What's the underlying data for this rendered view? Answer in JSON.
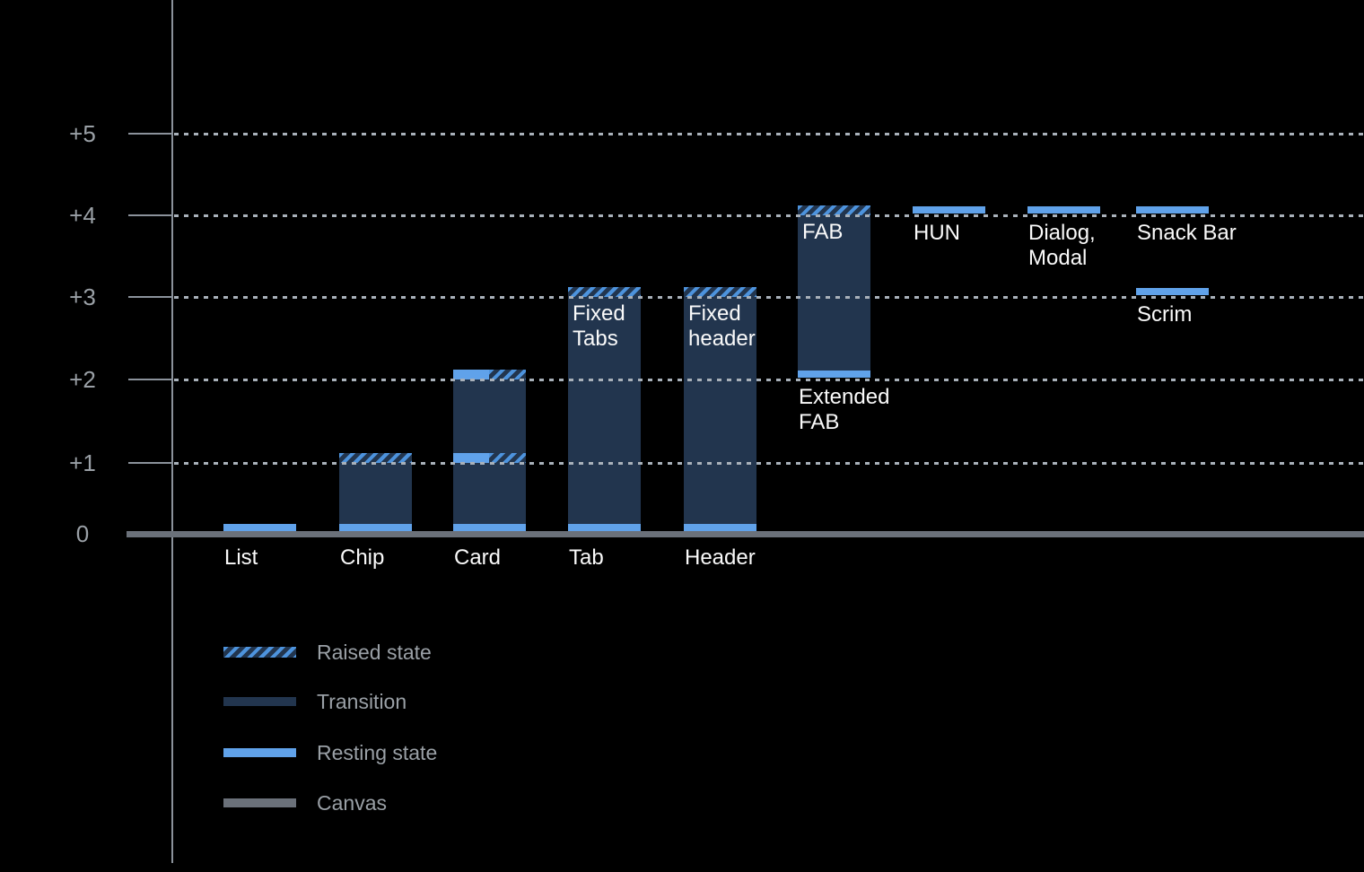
{
  "colors": {
    "background": "#000000",
    "resting_blue": "#60a2ea",
    "transition_navy": "#22354e",
    "hatch_stripe_blue": "#4d93dd",
    "canvas_gray": "#6b717a",
    "axis_gray": "#8b929b",
    "grid_dot_gray": "#a9b1ba",
    "tick_text_gray": "#9aa0a6",
    "legend_text_gray": "#9aa0a6",
    "bar_label_white": "#fafafa"
  },
  "chart_data": {
    "type": "bar",
    "title": "",
    "y_axis": {
      "range": [
        0,
        5
      ],
      "ticks": [
        {
          "label": "+5",
          "level": 5
        },
        {
          "label": "+4",
          "level": 4
        },
        {
          "label": "+3",
          "level": 3
        },
        {
          "label": "+2",
          "level": 2
        },
        {
          "label": "+1",
          "level": 1
        },
        {
          "label": "0",
          "level": 0
        }
      ]
    },
    "grid": "dotted-horizontal",
    "legend": [
      {
        "label": "Raised state",
        "style": "raised"
      },
      {
        "label": "Transition",
        "style": "transition"
      },
      {
        "label": "Resting state",
        "style": "resting"
      },
      {
        "label": "Canvas",
        "style": "canvas"
      }
    ],
    "columns": [
      {
        "name": "List",
        "labels": [
          {
            "lines": [
              "List"
            ],
            "below_level": 0
          }
        ],
        "segments": [
          {
            "kind": "resting",
            "level": 0
          }
        ]
      },
      {
        "name": "Chip",
        "labels": [
          {
            "lines": [
              "Chip"
            ],
            "below_level": 0
          }
        ],
        "segments": [
          {
            "kind": "transition",
            "from": 0,
            "to": 1
          },
          {
            "kind": "raised",
            "level": 1
          },
          {
            "kind": "resting",
            "level": 0
          }
        ]
      },
      {
        "name": "Card",
        "labels": [
          {
            "lines": [
              "Card"
            ],
            "below_level": 0
          }
        ],
        "segments": [
          {
            "kind": "transition",
            "from": 0,
            "to": 2
          },
          {
            "kind": "resting",
            "level": 2,
            "half": "left"
          },
          {
            "kind": "raised",
            "level": 2,
            "half": "right"
          },
          {
            "kind": "resting",
            "level": 1,
            "half": "left"
          },
          {
            "kind": "raised",
            "level": 1,
            "half": "right"
          },
          {
            "kind": "resting",
            "level": 0
          }
        ]
      },
      {
        "name": "Tab",
        "inner_label": {
          "lines": [
            "Fixed",
            "Tabs"
          ]
        },
        "labels": [
          {
            "lines": [
              "Tab"
            ],
            "below_level": 0
          }
        ],
        "segments": [
          {
            "kind": "transition",
            "from": 0,
            "to": 3
          },
          {
            "kind": "raised",
            "level": 3
          },
          {
            "kind": "resting",
            "level": 0
          }
        ]
      },
      {
        "name": "Header",
        "inner_label": {
          "lines": [
            "Fixed",
            "header"
          ]
        },
        "labels": [
          {
            "lines": [
              "Header"
            ],
            "below_level": 0
          }
        ],
        "segments": [
          {
            "kind": "transition",
            "from": 0,
            "to": 3
          },
          {
            "kind": "raised",
            "level": 3
          },
          {
            "kind": "resting",
            "level": 0
          }
        ]
      },
      {
        "name": "FAB",
        "inner_label": {
          "lines": [
            "FAB"
          ]
        },
        "labels": [
          {
            "lines": [
              "Extended",
              "FAB"
            ],
            "below_level": 2
          }
        ],
        "segments": [
          {
            "kind": "transition",
            "from": 2,
            "to": 4
          },
          {
            "kind": "raised",
            "level": 4
          },
          {
            "kind": "resting",
            "level": 2,
            "floating": true
          }
        ]
      },
      {
        "name": "HUN",
        "labels": [
          {
            "lines": [
              "HUN"
            ],
            "below_level": 4
          }
        ],
        "segments": [
          {
            "kind": "resting",
            "level": 4,
            "floating": true
          }
        ]
      },
      {
        "name": "Dialog, Modal",
        "labels": [
          {
            "lines": [
              "Dialog,",
              "Modal"
            ],
            "below_level": 4
          }
        ],
        "segments": [
          {
            "kind": "resting",
            "level": 4,
            "floating": true
          }
        ]
      },
      {
        "name": "Snack Bar / Scrim",
        "labels": [
          {
            "lines": [
              "Snack Bar"
            ],
            "below_level": 4
          },
          {
            "lines": [
              "Scrim"
            ],
            "below_level": 3
          }
        ],
        "segments": [
          {
            "kind": "resting",
            "level": 4,
            "floating": true
          },
          {
            "kind": "resting",
            "level": 3,
            "floating": true
          }
        ]
      }
    ]
  }
}
